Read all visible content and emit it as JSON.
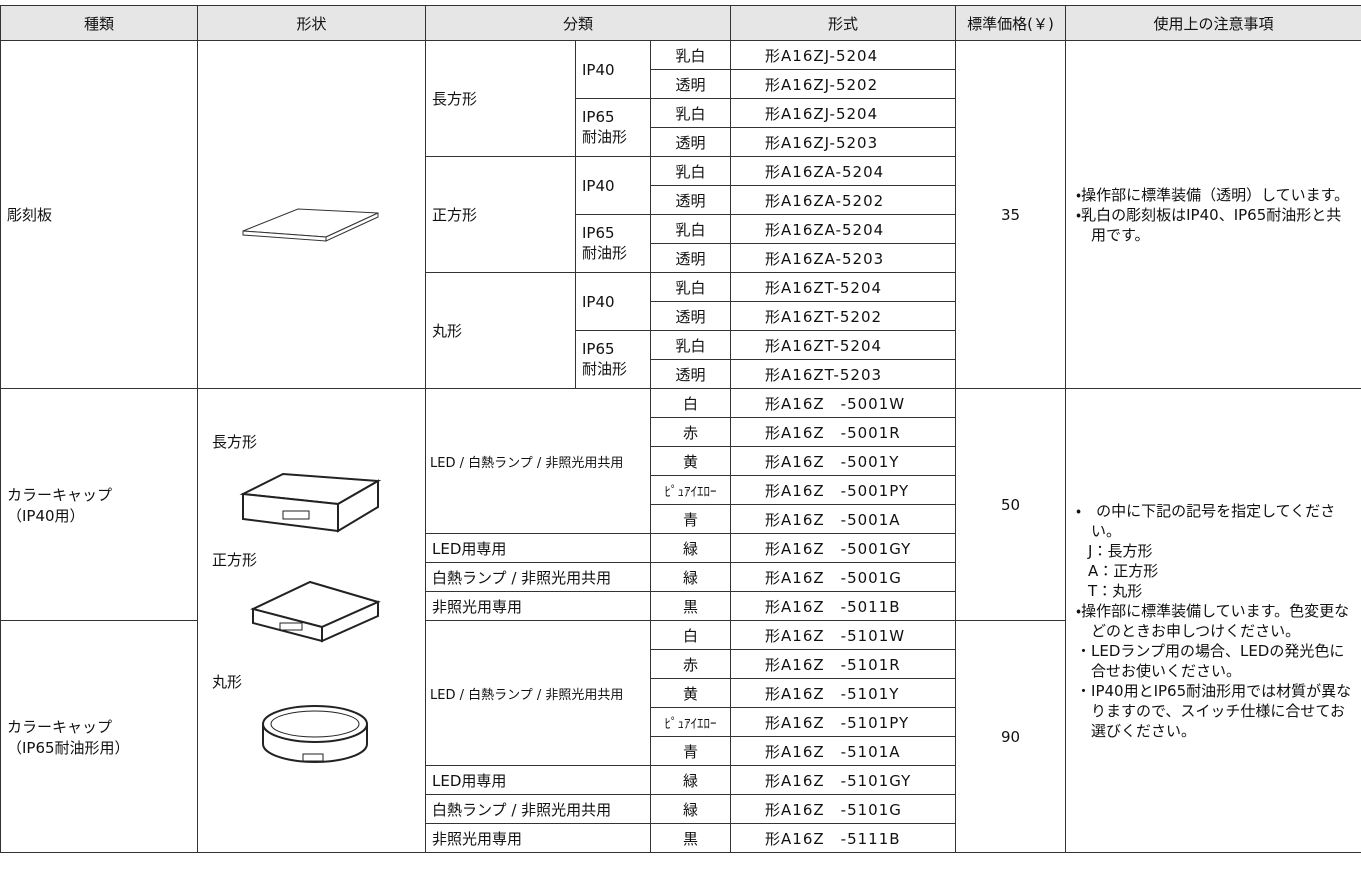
{
  "header": [
    "種類",
    "形状",
    "分類",
    "形式",
    "標準価格(￥)",
    "使用上の注意事項"
  ],
  "plates": {
    "type": "彫刻板",
    "price": 35,
    "notes": [
      "・操作部に標準装備（透明）しています。",
      "・乳白の彫刻板はIP40、IP65耐油形と共用です。"
    ],
    "groups": [
      {
        "shape": "長方形",
        "ratings": [
          {
            "label": "IP40",
            "items": [
              [
                "乳白",
                "形A16ZJ-5204"
              ],
              [
                "透明",
                "形A16ZJ-5202"
              ]
            ]
          },
          {
            "label": "IP65\n耐油形",
            "items": [
              [
                "乳白",
                "形A16ZJ-5204"
              ],
              [
                "透明",
                "形A16ZJ-5203"
              ]
            ]
          }
        ]
      },
      {
        "shape": "正方形",
        "ratings": [
          {
            "label": "IP40",
            "items": [
              [
                "乳白",
                "形A16ZA-5204"
              ],
              [
                "透明",
                "形A16ZA-5202"
              ]
            ]
          },
          {
            "label": "IP65\n耐油形",
            "items": [
              [
                "乳白",
                "形A16ZA-5204"
              ],
              [
                "透明",
                "形A16ZA-5203"
              ]
            ]
          }
        ]
      },
      {
        "shape": "丸形",
        "ratings": [
          {
            "label": "IP40",
            "items": [
              [
                "乳白",
                "形A16ZT-5204"
              ],
              [
                "透明",
                "形A16ZT-5202"
              ]
            ]
          },
          {
            "label": "IP65\n耐油形",
            "items": [
              [
                "乳白",
                "形A16ZT-5204"
              ],
              [
                "透明",
                "形A16ZT-5203"
              ]
            ]
          }
        ]
      }
    ]
  },
  "caps": {
    "shapes": [
      "長方形",
      "正方形",
      "丸形"
    ],
    "notes": [
      "・　の中に下記の記号を指定してください。",
      "J：長方形",
      "A：正方形",
      "T：丸形",
      "・操作部に標準装備しています。色変更などのときお申しつけください。",
      "・LEDランプ用の場合、LEDの発光色に合せお使いください。",
      "・IP40用とIP65耐油形用では材質が異なりますので、スイッチ仕様に合せてお選びください。"
    ],
    "variants": [
      {
        "type": "カラーキャップ\n（IP40用）",
        "price": 50,
        "classes": [
          {
            "label": "LED / 白熱ランプ / 非照光用共用",
            "items": [
              [
                "白",
                "形A16Z　-5001W"
              ],
              [
                "赤",
                "形A16Z　-5001R"
              ],
              [
                "黄",
                "形A16Z　-5001Y"
              ],
              [
                "ﾋﾟｭｱｲｴﾛｰ",
                "形A16Z　-5001PY"
              ],
              [
                "青",
                "形A16Z　-5001A"
              ]
            ]
          },
          {
            "label": "LED用専用",
            "items": [
              [
                "緑",
                "形A16Z　-5001GY"
              ]
            ]
          },
          {
            "label": "白熱ランプ / 非照光用共用",
            "items": [
              [
                "緑",
                "形A16Z　-5001G"
              ]
            ]
          },
          {
            "label": "非照光用専用",
            "items": [
              [
                "黒",
                "形A16Z　-5011B"
              ]
            ]
          }
        ]
      },
      {
        "type": "カラーキャップ\n（IP65耐油形用）",
        "price": 90,
        "classes": [
          {
            "label": "LED / 白熱ランプ / 非照光用共用",
            "items": [
              [
                "白",
                "形A16Z　-5101W"
              ],
              [
                "赤",
                "形A16Z　-5101R"
              ],
              [
                "黄",
                "形A16Z　-5101Y"
              ],
              [
                "ﾋﾟｭｱｲｴﾛｰ",
                "形A16Z　-5101PY"
              ],
              [
                "青",
                "形A16Z　-5101A"
              ]
            ]
          },
          {
            "label": "LED用専用",
            "items": [
              [
                "緑",
                "形A16Z　-5101GY"
              ]
            ]
          },
          {
            "label": "白熱ランプ / 非照光用共用",
            "items": [
              [
                "緑",
                "形A16Z　-5101G"
              ]
            ]
          },
          {
            "label": "非照光用専用",
            "items": [
              [
                "黒",
                "形A16Z　-5111B"
              ]
            ]
          }
        ]
      }
    ]
  }
}
